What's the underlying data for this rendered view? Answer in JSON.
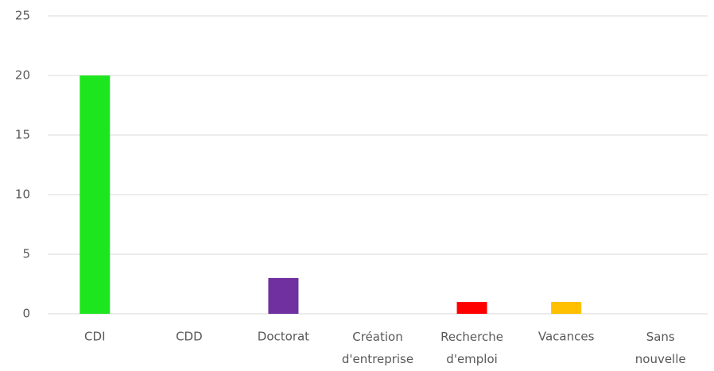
{
  "chart_data": {
    "type": "bar",
    "categories": [
      "CDI",
      "CDD",
      "Doctorat",
      "Création d'entreprise",
      "Recherche d'emploi",
      "Vacances",
      "Sans nouvelle"
    ],
    "values": [
      20,
      0,
      3,
      0,
      1,
      1,
      0
    ],
    "colors": [
      "#1ee61e",
      null,
      "#7030a0",
      null,
      "#ff0000",
      "#ffc000",
      null
    ],
    "ylim": [
      0,
      25
    ],
    "yticks": [
      0,
      5,
      10,
      15,
      20,
      25
    ],
    "grid": true
  }
}
